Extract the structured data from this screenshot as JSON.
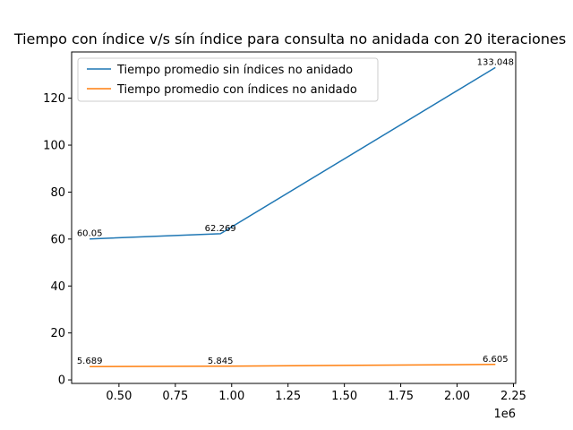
{
  "chart_data": {
    "type": "line",
    "title": "Tiempo con índice v/s sín índice para consulta no anidada con 20 iteraciones",
    "xlabel": "",
    "ylabel": "",
    "x_offset_label": "1e6",
    "xlim": [
      0.29,
      2.26
    ],
    "ylim": [
      -1.5,
      139.7
    ],
    "x_ticks": [
      0.5,
      0.75,
      1.0,
      1.25,
      1.5,
      1.75,
      2.0,
      2.25
    ],
    "x_tick_labels": [
      "0.50",
      "0.75",
      "1.00",
      "1.25",
      "1.50",
      "1.75",
      "2.00",
      "2.25"
    ],
    "y_ticks": [
      0,
      20,
      40,
      60,
      80,
      100,
      120
    ],
    "y_tick_labels": [
      "0",
      "20",
      "40",
      "60",
      "80",
      "100",
      "120"
    ],
    "grid": false,
    "legend_position": "upper-left",
    "x": [
      0.37,
      0.95,
      2.17
    ],
    "series": [
      {
        "name": "Tiempo promedio sin índices no anidado",
        "color": "#1f77b4",
        "values": [
          60.05,
          62.269,
          133.048
        ],
        "labels": [
          "60.05",
          "62.269",
          "133.048"
        ]
      },
      {
        "name": "Tiempo promedio con índices no anidado",
        "color": "#ff7f0e",
        "values": [
          5.689,
          5.845,
          6.605
        ],
        "labels": [
          "5.689",
          "5.845",
          "6.605"
        ]
      }
    ]
  }
}
